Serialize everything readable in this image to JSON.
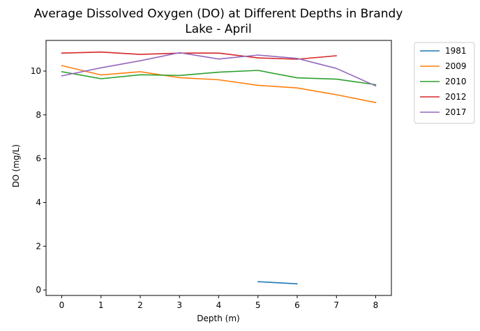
{
  "chart_data": {
    "type": "line",
    "title_line1": "Average Dissolved Oxygen (DO) at Different Depths in Brandy",
    "title_line2": "Lake - April",
    "xlabel": "Depth (m)",
    "ylabel": "DO (mg/L)",
    "xlim": [
      -0.4,
      8.4
    ],
    "ylim": [
      -0.25,
      11.4
    ],
    "xticks": [
      0,
      1,
      2,
      3,
      4,
      5,
      6,
      7,
      8
    ],
    "yticks": [
      0,
      2,
      4,
      6,
      8,
      10
    ],
    "grid": false,
    "legend_position": "outside-top-right",
    "series": [
      {
        "name": "1981",
        "color": "#1f77b4",
        "x": [
          5,
          6
        ],
        "y": [
          0.38,
          0.28
        ]
      },
      {
        "name": "2009",
        "color": "#ff7f0e",
        "x": [
          0,
          1,
          2,
          3,
          4,
          5,
          6,
          7,
          8
        ],
        "y": [
          10.25,
          9.82,
          9.97,
          9.7,
          9.6,
          9.35,
          9.23,
          8.92,
          8.56
        ]
      },
      {
        "name": "2010",
        "color": "#2ca02c",
        "x": [
          0,
          1,
          2,
          3,
          4,
          5,
          6,
          7,
          8
        ],
        "y": [
          9.97,
          9.65,
          9.83,
          9.8,
          9.95,
          10.03,
          9.69,
          9.63,
          9.38
        ]
      },
      {
        "name": "2012",
        "color": "#d62728",
        "x": [
          0,
          1,
          2,
          3,
          4,
          5,
          6,
          7
        ],
        "y": [
          10.82,
          10.87,
          10.76,
          10.82,
          10.82,
          10.6,
          10.54,
          10.7
        ]
      },
      {
        "name": "2017",
        "color": "#9467bd",
        "x": [
          0,
          1,
          2,
          3,
          4,
          5,
          6,
          7,
          8
        ],
        "y": [
          9.78,
          10.15,
          10.47,
          10.84,
          10.55,
          10.73,
          10.58,
          10.12,
          9.32
        ]
      }
    ]
  }
}
